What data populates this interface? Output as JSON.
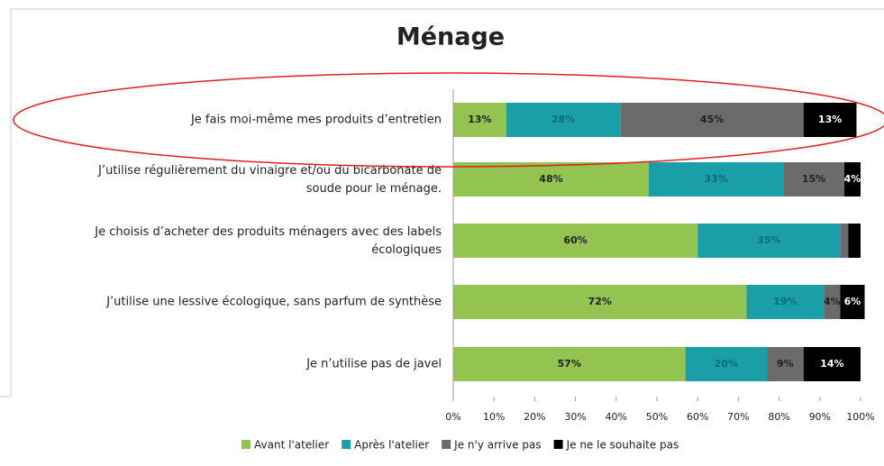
{
  "chart_data": {
    "type": "stacked-barh",
    "title": "Ménage",
    "categories": [
      "Je fais moi-même mes produits d’entretien",
      "J’utilise régulièrement du vinaigre et/ou du bicarbonate de\nsoude pour le ménage.",
      "Je choisis d’acheter des produits ménagers avec des labels\nécologiques",
      "J’utilise une lessive écologique, sans parfum de synthèse",
      "Je n’utilise pas de javel"
    ],
    "series": [
      {
        "name": "Avant l'atelier",
        "color": "#93c452",
        "values": [
          13,
          48,
          60,
          72,
          57
        ],
        "value_labels": [
          "13%",
          "48%",
          "60%",
          "72%",
          "57%"
        ]
      },
      {
        "name": "Après l'atelier",
        "color": "#1a9fa9",
        "values": [
          28,
          33,
          35,
          19,
          20
        ],
        "value_labels": [
          "28%",
          "33%",
          "35%",
          "19%",
          "20%"
        ]
      },
      {
        "name": "Je n'y arrive pas",
        "color": "#6b6b6b",
        "values": [
          45,
          15,
          2,
          4,
          9
        ],
        "value_labels": [
          "45%",
          "15%",
          null,
          "4%",
          "9%"
        ]
      },
      {
        "name": "Je ne le souhaite pas",
        "color": "#000000",
        "values": [
          13,
          4,
          3,
          6,
          14
        ],
        "value_labels": [
          "13%",
          "4%",
          null,
          "6%",
          "14%"
        ]
      }
    ],
    "xlim": [
      0,
      100
    ],
    "xticks": [
      {
        "value": 0,
        "label": "0%"
      },
      {
        "value": 10,
        "label": "10%"
      },
      {
        "value": 20,
        "label": "20%"
      },
      {
        "value": 30,
        "label": "30%"
      },
      {
        "value": 40,
        "label": "40%"
      },
      {
        "value": 50,
        "label": "50%"
      },
      {
        "value": 60,
        "label": "60%"
      },
      {
        "value": 70,
        "label": "70%"
      },
      {
        "value": 80,
        "label": "80%"
      },
      {
        "value": 90,
        "label": "90%"
      },
      {
        "value": 100,
        "label": "100%"
      }
    ],
    "legend": "bottom"
  }
}
